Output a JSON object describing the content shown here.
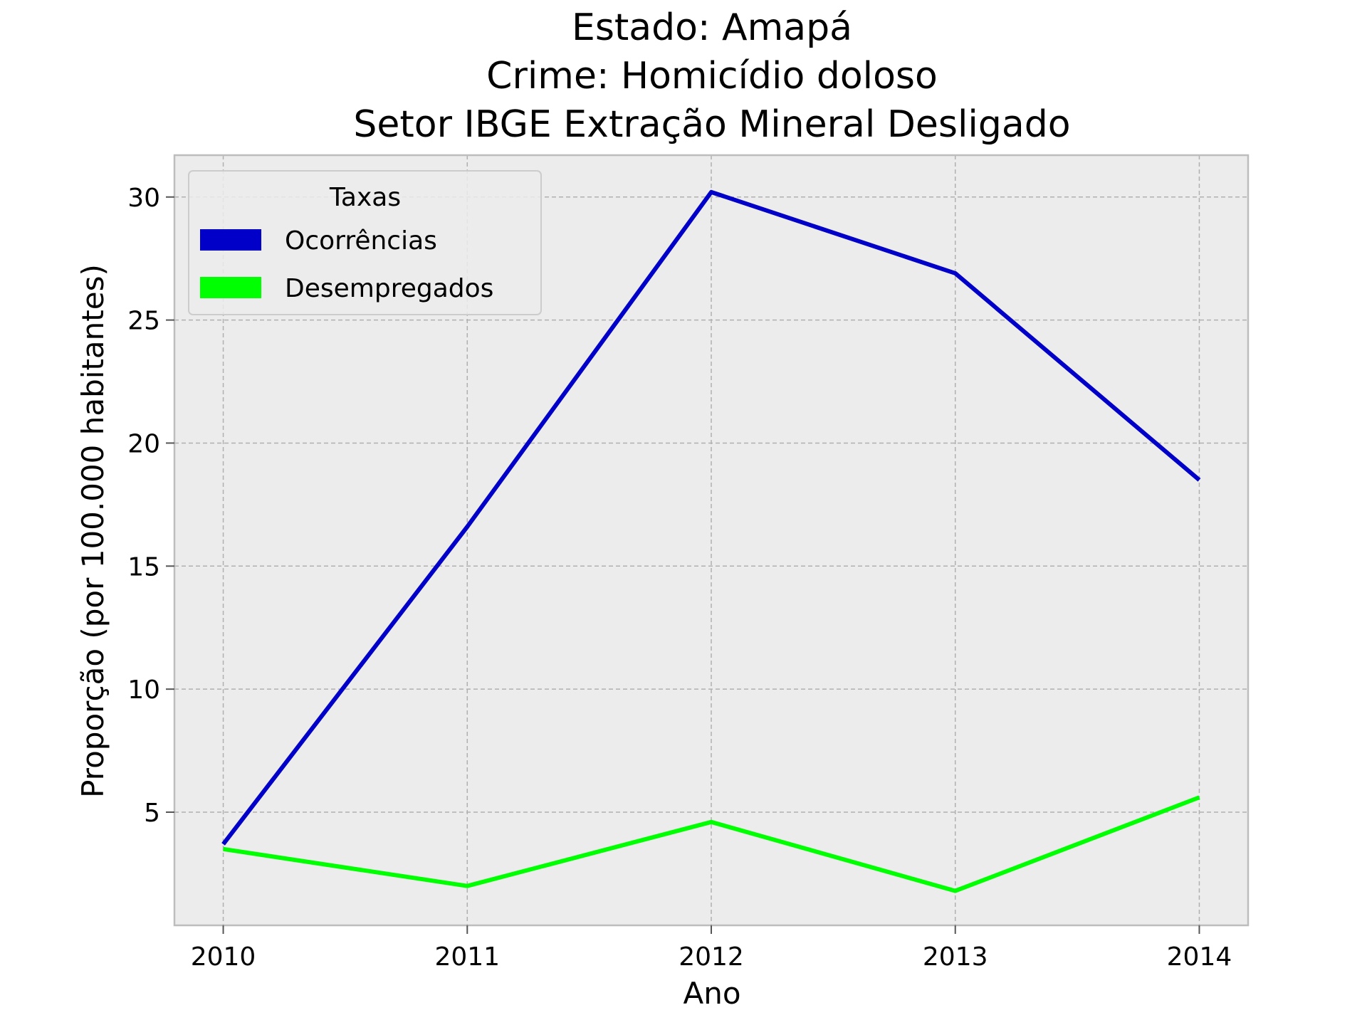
{
  "chart_data": {
    "type": "line",
    "title_lines": [
      "Estado: Amapá",
      "Crime: Homicídio doloso",
      "Setor IBGE  Extração Mineral   Desligado"
    ],
    "xlabel": "Ano",
    "ylabel": "Proporção (por 100.000 habitantes)",
    "x": [
      2010,
      2011,
      2012,
      2013,
      2014
    ],
    "x_tick_labels": [
      "2010",
      "2011",
      "2012",
      "2013",
      "2014"
    ],
    "y_ticks": [
      5,
      10,
      15,
      20,
      25,
      30
    ],
    "y_tick_labels": [
      "5",
      "10",
      "15",
      "20",
      "25",
      "30"
    ],
    "xlim": [
      2009.8,
      2014.2
    ],
    "ylim": [
      0.4,
      31.7
    ],
    "grid": true,
    "legend": {
      "title": "Taxas",
      "placement": "upper-left"
    },
    "series": [
      {
        "name": "Ocorrências",
        "color": "#0000c8",
        "values": [
          3.7,
          16.6,
          30.2,
          26.9,
          18.5
        ]
      },
      {
        "name": "Desempregados",
        "color": "#00ff00",
        "values": [
          3.5,
          2.0,
          4.6,
          1.8,
          5.6
        ]
      }
    ],
    "background_color": "#ececec",
    "frame_color": "#bdbdbd"
  }
}
